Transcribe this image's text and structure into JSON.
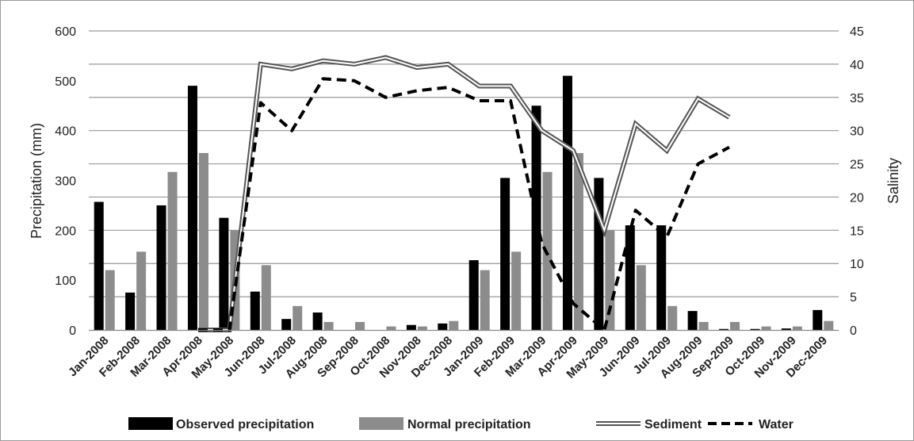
{
  "chart_data": {
    "type": "bar",
    "categories": [
      "Jan-2008",
      "Feb-2008",
      "Mar-2008",
      "Apr-2008",
      "May-2008",
      "Jun-2008",
      "Jul-2008",
      "Aug-2008",
      "Sep-2008",
      "Oct-2008",
      "Nov-2008",
      "Dec-2008",
      "Jan-2009",
      "Feb-2009",
      "Mar-2009",
      "Apr-2009",
      "May-2009",
      "Jun-2009",
      "Jul-2009",
      "Aug-2009",
      "Sep-2009",
      "Oct-2009",
      "Nov-2009",
      "Dec-2009"
    ],
    "ylabel": "Precipitation (mm)",
    "y2label": "Salinity",
    "ylim": [
      0,
      600
    ],
    "y2lim": [
      0,
      45
    ],
    "yticks": [
      "0",
      "100",
      "200",
      "300",
      "400",
      "500",
      "600"
    ],
    "y2ticks": [
      "0",
      "5",
      "10",
      "15",
      "20",
      "25",
      "30",
      "35",
      "40",
      "45"
    ],
    "grid": true,
    "legend_position": "bottom",
    "series": [
      {
        "name": "Observed precipitation",
        "kind": "bar",
        "axis": "left",
        "color": "#000000",
        "values": [
          257,
          75,
          250,
          490,
          225,
          77,
          22,
          35,
          0,
          0,
          10,
          13,
          140,
          305,
          450,
          510,
          305,
          210,
          210,
          38,
          2,
          2,
          3,
          40
        ]
      },
      {
        "name": "Normal precipitation",
        "kind": "bar",
        "axis": "left",
        "color": "#8c8c8c",
        "values": [
          120,
          157,
          317,
          355,
          200,
          130,
          48,
          16,
          16,
          7,
          7,
          18,
          120,
          157,
          317,
          355,
          200,
          130,
          48,
          16,
          16,
          7,
          7,
          18
        ]
      },
      {
        "name": "Sediment",
        "kind": "line",
        "axis": "right",
        "style": "double",
        "color": "#555555",
        "values": [
          null,
          null,
          null,
          0,
          0,
          40,
          39.3,
          40.5,
          40,
          41,
          39.5,
          40,
          36.7,
          36.7,
          30,
          27,
          15,
          31,
          27,
          34.8,
          32,
          null,
          null,
          null
        ]
      },
      {
        "name": "Water",
        "kind": "line",
        "axis": "right",
        "style": "dashed",
        "color": "#000000",
        "values": [
          null,
          null,
          null,
          0,
          0,
          34.2,
          30,
          37.8,
          37.5,
          35,
          36,
          36.5,
          34.5,
          34.5,
          13,
          4,
          0,
          18,
          14,
          25,
          27.5,
          null,
          null,
          null
        ]
      }
    ]
  }
}
